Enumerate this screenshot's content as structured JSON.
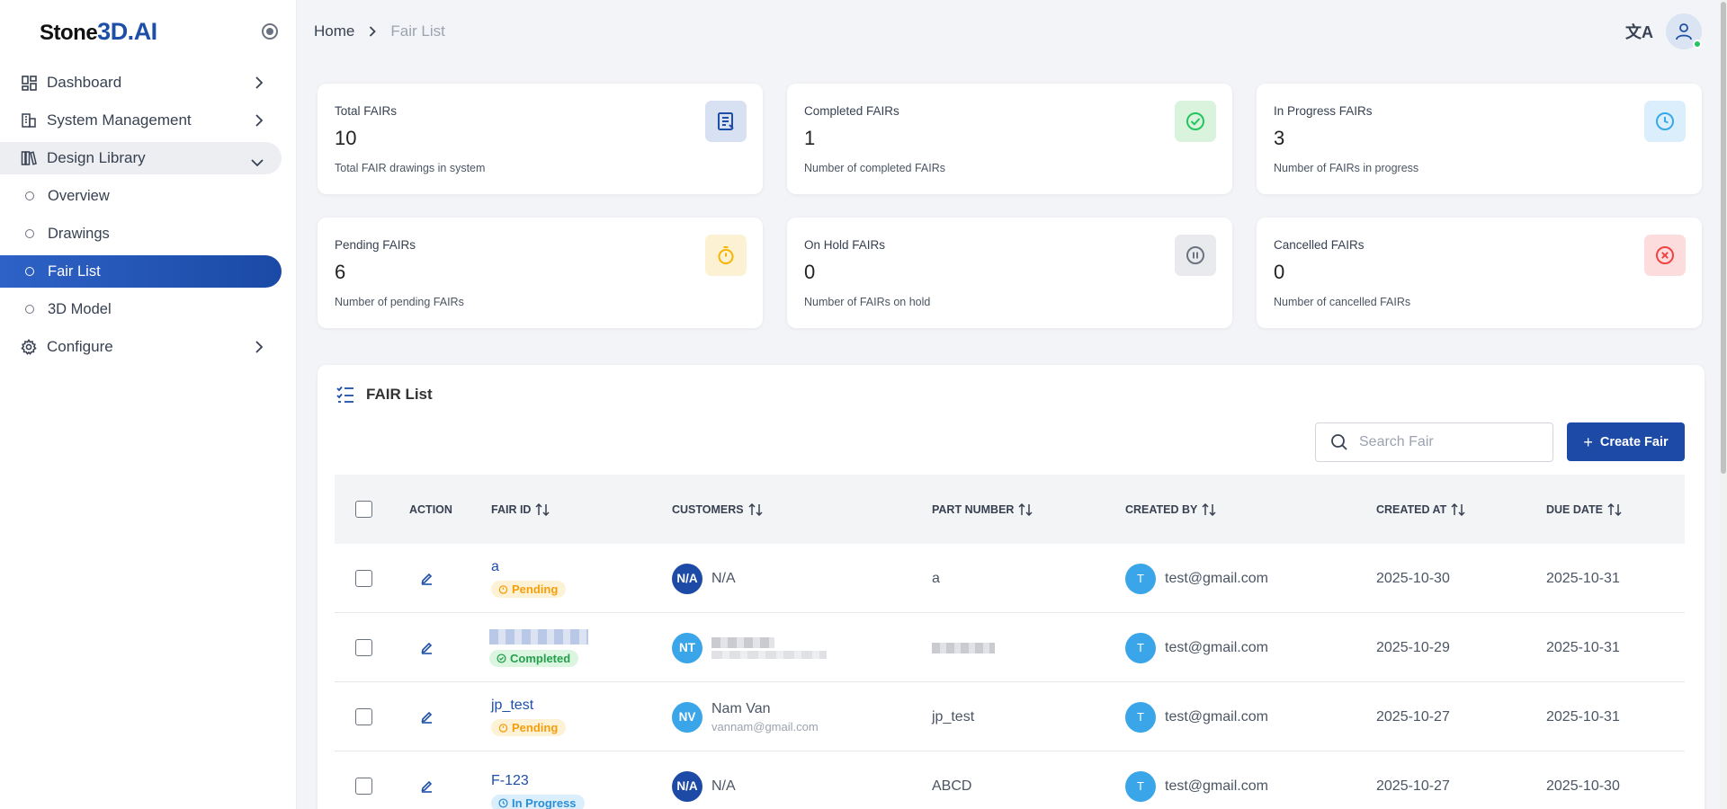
{
  "app": {
    "logo_text": "Stone",
    "logo_accent": "3D.AI"
  },
  "sidebar": {
    "items": [
      {
        "label": "Dashboard"
      },
      {
        "label": "System Management"
      },
      {
        "label": "Design Library"
      },
      {
        "label": "Overview"
      },
      {
        "label": "Drawings"
      },
      {
        "label": "Fair List"
      },
      {
        "label": "3D Model"
      },
      {
        "label": "Configure"
      }
    ]
  },
  "breadcrumb": {
    "home": "Home",
    "current": "Fair List"
  },
  "header": {
    "translate_glyph": "文A"
  },
  "stats": [
    {
      "title": "Total FAIRs",
      "value": "10",
      "subtitle": "Total FAIR drawings in system",
      "color": "#1d4fa8"
    },
    {
      "title": "Completed FAIRs",
      "value": "1",
      "subtitle": "Number of completed FAIRs",
      "color": "#22c55e"
    },
    {
      "title": "In Progress FAIRs",
      "value": "3",
      "subtitle": "Number of FAIRs in progress",
      "color": "#38a8e8"
    },
    {
      "title": "Pending FAIRs",
      "value": "6",
      "subtitle": "Number of pending FAIRs",
      "color": "#f5b400"
    },
    {
      "title": "On Hold FAIRs",
      "value": "0",
      "subtitle": "Number of FAIRs on hold",
      "color": "#6b7280"
    },
    {
      "title": "Cancelled FAIRs",
      "value": "0",
      "subtitle": "Number of cancelled FAIRs",
      "color": "#ef4444"
    }
  ],
  "fair_list": {
    "title": "FAIR List",
    "search_placeholder": "Search Fair",
    "create_label": "Create Fair",
    "columns": [
      "ACTION",
      "FAIR ID",
      "CUSTOMERS",
      "PART NUMBER",
      "CREATED BY",
      "CREATED AT",
      "DUE DATE"
    ],
    "rows": [
      {
        "fair_id": "a",
        "status": "Pending",
        "customer_initials": "N/A",
        "customer_name": "N/A",
        "customer_email": "",
        "part_number": "a",
        "created_by_initial": "T",
        "created_by": "test@gmail.com",
        "created_at": "2025-10-30",
        "due_date": "2025-10-31"
      },
      {
        "fair_id": "",
        "status": "Completed",
        "customer_initials": "NT",
        "customer_name": "",
        "customer_email": "",
        "part_number": "",
        "created_by_initial": "T",
        "created_by": "test@gmail.com",
        "created_at": "2025-10-29",
        "due_date": "2025-10-31"
      },
      {
        "fair_id": "jp_test",
        "status": "Pending",
        "customer_initials": "NV",
        "customer_name": "Nam Van",
        "customer_email": "vannam@gmail.com",
        "part_number": "jp_test",
        "created_by_initial": "T",
        "created_by": "test@gmail.com",
        "created_at": "2025-10-27",
        "due_date": "2025-10-31"
      },
      {
        "fair_id": "F-123",
        "status": "In Progress",
        "customer_initials": "N/A",
        "customer_name": "N/A",
        "customer_email": "",
        "part_number": "ABCD",
        "created_by_initial": "T",
        "created_by": "test@gmail.com",
        "created_at": "2025-10-27",
        "due_date": "2025-10-30"
      }
    ]
  }
}
